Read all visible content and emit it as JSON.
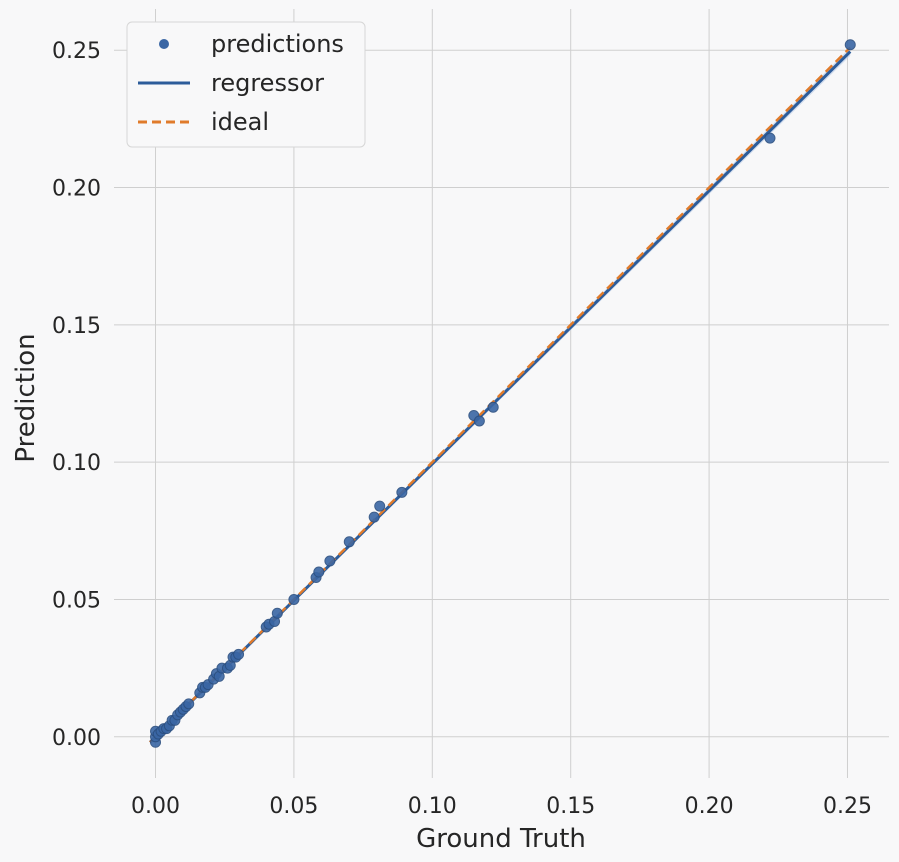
{
  "colors": {
    "background": "#f8f8f9",
    "plot_background": "#f8f8f9",
    "grid": "#cfcfcf",
    "points": "#3a66a4",
    "regressor": "#2c5c9a",
    "confidence_band": "#b9cbe6",
    "ideal": "#e07b2b",
    "text": "#262626"
  },
  "chart_data": {
    "type": "scatter",
    "title": "",
    "xlabel": "Ground Truth",
    "ylabel": "Prediction",
    "xlim": [
      -0.015,
      0.265
    ],
    "ylim": [
      -0.015,
      0.265
    ],
    "xticks": [
      0.0,
      0.05,
      0.1,
      0.15,
      0.2,
      0.25
    ],
    "yticks": [
      0.0,
      0.05,
      0.1,
      0.15,
      0.2,
      0.25
    ],
    "xtick_labels": [
      "0.00",
      "0.05",
      "0.10",
      "0.15",
      "0.20",
      "0.25"
    ],
    "ytick_labels": [
      "0.00",
      "0.05",
      "0.10",
      "0.15",
      "0.20",
      "0.25"
    ],
    "grid": true,
    "legend": {
      "position": "top-left",
      "entries": [
        {
          "label": "predictions",
          "style": "marker"
        },
        {
          "label": "regressor",
          "style": "solid-line"
        },
        {
          "label": "ideal",
          "style": "dashed-line"
        }
      ]
    },
    "series": [
      {
        "name": "predictions",
        "kind": "points",
        "points": [
          [
            0.0,
            -0.002
          ],
          [
            0.0,
            0.0
          ],
          [
            0.0,
            0.002
          ],
          [
            0.001,
            0.001
          ],
          [
            0.002,
            0.002
          ],
          [
            0.003,
            0.003
          ],
          [
            0.004,
            0.003
          ],
          [
            0.005,
            0.004
          ],
          [
            0.006,
            0.006
          ],
          [
            0.007,
            0.006
          ],
          [
            0.008,
            0.008
          ],
          [
            0.009,
            0.009
          ],
          [
            0.01,
            0.01
          ],
          [
            0.011,
            0.011
          ],
          [
            0.012,
            0.012
          ],
          [
            0.016,
            0.016
          ],
          [
            0.017,
            0.018
          ],
          [
            0.018,
            0.018
          ],
          [
            0.019,
            0.019
          ],
          [
            0.021,
            0.021
          ],
          [
            0.022,
            0.023
          ],
          [
            0.023,
            0.022
          ],
          [
            0.024,
            0.025
          ],
          [
            0.026,
            0.025
          ],
          [
            0.027,
            0.026
          ],
          [
            0.028,
            0.029
          ],
          [
            0.029,
            0.029
          ],
          [
            0.03,
            0.03
          ],
          [
            0.04,
            0.04
          ],
          [
            0.041,
            0.041
          ],
          [
            0.043,
            0.042
          ],
          [
            0.044,
            0.045
          ],
          [
            0.05,
            0.05
          ],
          [
            0.058,
            0.058
          ],
          [
            0.059,
            0.06
          ],
          [
            0.063,
            0.064
          ],
          [
            0.07,
            0.071
          ],
          [
            0.079,
            0.08
          ],
          [
            0.081,
            0.084
          ],
          [
            0.089,
            0.089
          ],
          [
            0.115,
            0.117
          ],
          [
            0.117,
            0.115
          ],
          [
            0.122,
            0.12
          ],
          [
            0.222,
            0.218
          ],
          [
            0.251,
            0.252
          ]
        ]
      },
      {
        "name": "regressor",
        "kind": "line",
        "x": [
          -0.002,
          0.251
        ],
        "y": [
          -0.002,
          0.2495
        ],
        "band_halfwidth": [
          0.0005,
          0.0015
        ]
      },
      {
        "name": "ideal",
        "kind": "dashed-line",
        "x": [
          -0.002,
          0.251
        ],
        "y": [
          -0.002,
          0.251
        ]
      }
    ]
  }
}
